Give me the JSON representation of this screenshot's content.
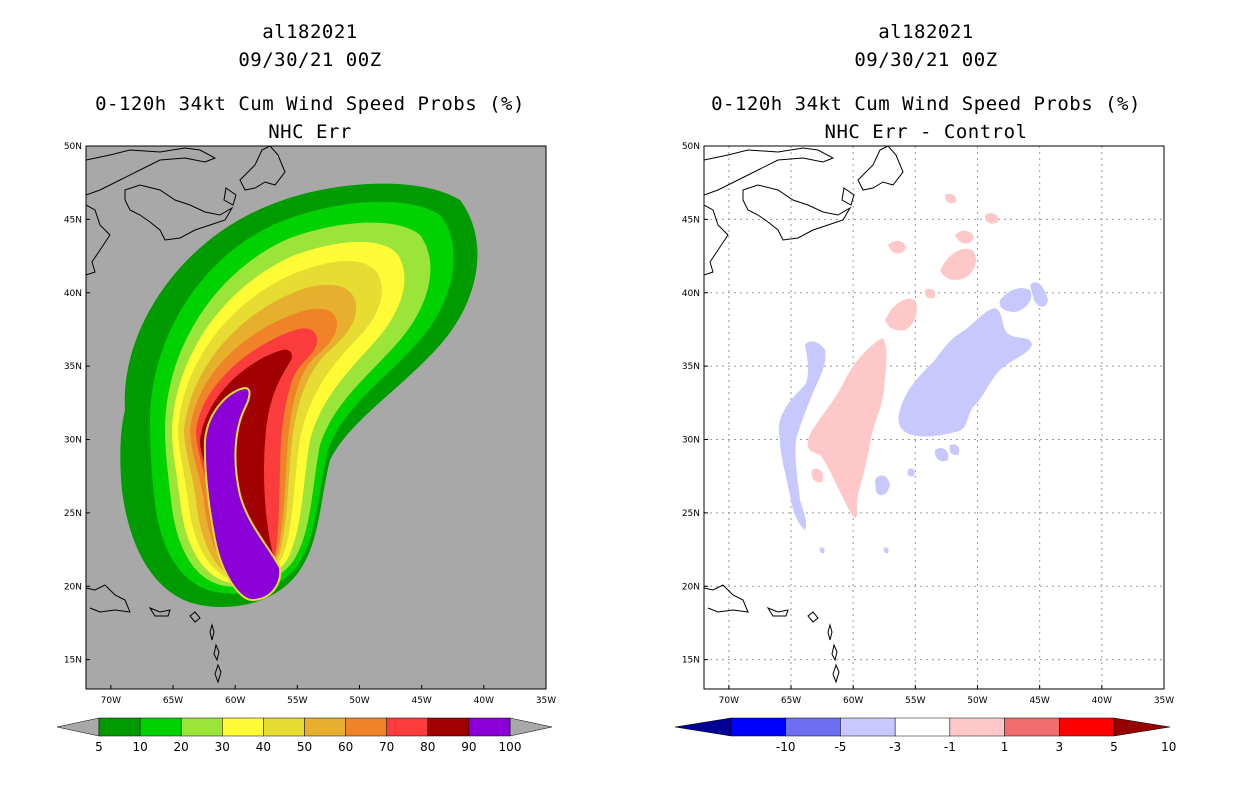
{
  "chart_data": [
    {
      "type": "heatmap",
      "panel": "left",
      "title_lines": [
        "al182021",
        "09/30/21 00Z",
        "0-120h 34kt Cum Wind Speed Probs (%)",
        "NHC Err"
      ],
      "x_ticks": [
        "70W",
        "65W",
        "60W",
        "55W",
        "50W",
        "45W",
        "40W",
        "35W"
      ],
      "y_ticks": [
        "50N",
        "45N",
        "40N",
        "35N",
        "30N",
        "25N",
        "20N",
        "15N"
      ],
      "xlim": [
        -72,
        -35
      ],
      "ylim": [
        13,
        50
      ],
      "colorbar": {
        "ticks": [
          "5",
          "10",
          "20",
          "30",
          "40",
          "50",
          "60",
          "70",
          "80",
          "90",
          "100"
        ],
        "colors": [
          "#009b00",
          "#00d100",
          "#9be53a",
          "#fffb35",
          "#e6dc32",
          "#e6af2d",
          "#f08228",
          "#fa3c3c",
          "#a00000",
          "#8c00d8"
        ]
      },
      "contour_levels": [
        5,
        10,
        20,
        30,
        40,
        50,
        60,
        70,
        80,
        90
      ],
      "background": "#a8a8a8"
    },
    {
      "type": "heatmap",
      "panel": "right",
      "title_lines": [
        "al182021",
        "09/30/21 00Z",
        "0-120h 34kt Cum Wind Speed Probs (%)",
        "NHC Err - Control"
      ],
      "x_ticks": [
        "70W",
        "65W",
        "60W",
        "55W",
        "50W",
        "45W",
        "40W",
        "35W"
      ],
      "y_ticks": [
        "50N",
        "45N",
        "40N",
        "35N",
        "30N",
        "25N",
        "20N",
        "15N"
      ],
      "xlim": [
        -72,
        -35
      ],
      "ylim": [
        13,
        50
      ],
      "colorbar": {
        "ticks": [
          "-10",
          "-5",
          "-3",
          "-1",
          "1",
          "3",
          "5",
          "10"
        ],
        "colors": [
          "#000096",
          "#0000ff",
          "#6e6ef0",
          "#c8c8ff",
          "#ffffff",
          "#ffc8c8",
          "#f06e6e",
          "#ff0000",
          "#960000"
        ]
      },
      "positive_color": "#ffc8c8",
      "negative_color": "#c8c8ff"
    }
  ]
}
